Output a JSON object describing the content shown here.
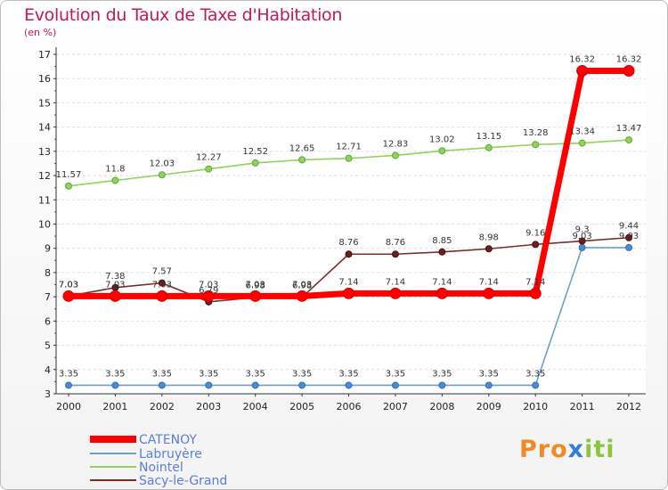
{
  "chart_data": {
    "type": "line",
    "title": "Evolution du Taux de Taxe d'Habitation",
    "subtitle": "(en %)",
    "x": [
      "2000",
      "2001",
      "2002",
      "2003",
      "2004",
      "2005",
      "2006",
      "2007",
      "2008",
      "2009",
      "2010",
      "2011",
      "2012"
    ],
    "ylim": [
      3,
      17
    ],
    "yticks": [
      "3",
      "4",
      "5",
      "6",
      "7",
      "8",
      "9",
      "10",
      "11",
      "12",
      "13",
      "14",
      "15",
      "16",
      "17"
    ],
    "grid": "horizontal",
    "legend_position": "bottom-left",
    "series": [
      {
        "name": "CATENOY",
        "color": "#ff0000",
        "values": [
          7.03,
          7.03,
          7.03,
          7.03,
          7.03,
          7.03,
          7.14,
          7.14,
          7.14,
          7.14,
          7.14,
          16.32,
          16.32
        ],
        "labels": [
          "7.03",
          "7.03",
          "7.03",
          "7.03",
          "7.03",
          "7.03",
          "7.14",
          "7.14",
          "7.14",
          "7.14",
          "7.14",
          "16.32",
          "16.32"
        ]
      },
      {
        "name": "Labruyère",
        "color": "#6d9fd0",
        "values": [
          3.35,
          3.35,
          3.35,
          3.35,
          3.35,
          3.35,
          3.35,
          3.35,
          3.35,
          3.35,
          3.35,
          9.03,
          9.03
        ],
        "labels": [
          "3.35",
          "3.35",
          "3.35",
          "3.35",
          "3.35",
          "3.35",
          "3.35",
          "3.35",
          "3.35",
          "3.35",
          "3.35",
          "9.03",
          "9.03"
        ]
      },
      {
        "name": "Nointel",
        "color": "#8fd35a",
        "values": [
          11.57,
          11.8,
          12.03,
          12.27,
          12.52,
          12.65,
          12.71,
          12.83,
          13.02,
          13.15,
          13.28,
          13.34,
          13.47
        ],
        "labels": [
          "11.57",
          "11.8",
          "12.03",
          "12.27",
          "12.52",
          "12.65",
          "12.71",
          "12.83",
          "13.02",
          "13.15",
          "13.28",
          "13.34",
          "13.47"
        ]
      },
      {
        "name": "Sacy-le-Grand",
        "color": "#7a2b2b",
        "values": [
          7.03,
          7.38,
          7.57,
          6.79,
          6.98,
          6.98,
          8.76,
          8.76,
          8.85,
          8.98,
          9.16,
          9.3,
          9.44
        ],
        "labels": [
          "7.03",
          "7.38",
          "7.57",
          "6.79",
          "6.98",
          "6.98",
          "8.76",
          "8.76",
          "8.85",
          "8.98",
          "9.16",
          "9.3",
          "9.44"
        ]
      }
    ]
  },
  "logo": {
    "p1": "Pro",
    "x": "x",
    "p2": "iti"
  }
}
